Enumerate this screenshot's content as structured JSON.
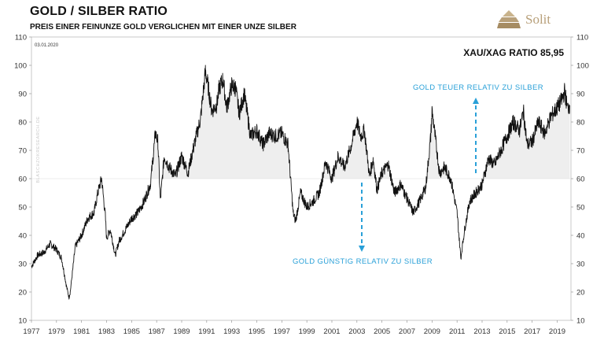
{
  "header": {
    "title": "GOLD / SILBER RATIO",
    "subtitle": "PREIS EINER FEINUNZE GOLD VERGLICHEN MIT EINER UNZE SILBER"
  },
  "logo": {
    "text": "Solit",
    "icon": "pyramid-icon",
    "color": "#b8a07a"
  },
  "watermark": "BLASCHZOKRESEARCH.DE",
  "colors": {
    "line": "#111111",
    "band": "#eeeeee",
    "annotation": "#29a0d8",
    "grid": "#d8d8d8"
  },
  "chart_data": {
    "type": "line",
    "date_label": "03.01.2020",
    "ratio_label": "XAU/XAG RATIO 85,95",
    "xlim": [
      1977,
      2020.1
    ],
    "ylim": [
      10,
      110
    ],
    "x_ticks": [
      "1977",
      "1979",
      "1981",
      "1983",
      "1985",
      "1987",
      "1989",
      "1991",
      "1993",
      "1995",
      "1997",
      "1999",
      "2001",
      "2003",
      "2005",
      "2007",
      "2009",
      "2011",
      "2013",
      "2015",
      "2017",
      "2019"
    ],
    "y_ticks": [
      10,
      20,
      30,
      40,
      50,
      60,
      70,
      80,
      90,
      100,
      110
    ],
    "reference_line": 60,
    "shading": "above 60",
    "grid": false,
    "annotations": [
      {
        "text": "GOLD TEUER RELATIV ZU SILBER",
        "arrow": "up"
      },
      {
        "text": "GOLD GÜNSTIG RELATIV ZU SILBER",
        "arrow": "down"
      }
    ],
    "series": [
      {
        "x": [
          1977.0,
          1977.5,
          1978.0,
          1978.5,
          1979.0,
          1979.4,
          1979.8,
          1980.0,
          1980.1,
          1980.5,
          1981.0,
          1981.5,
          1982.0,
          1982.3,
          1982.6,
          1982.9,
          1983.0,
          1983.3,
          1983.7,
          1984.0,
          1984.5,
          1985.0,
          1985.5,
          1986.0,
          1986.5,
          1986.9,
          1987.1,
          1987.3,
          1987.6,
          1988.0,
          1988.5,
          1989.0,
          1989.5,
          1990.0,
          1990.5,
          1990.9,
          1991.1,
          1991.4,
          1991.8,
          1992.0,
          1992.3,
          1992.6,
          1993.0,
          1993.3,
          1993.6,
          1994.0,
          1994.5,
          1995.0,
          1995.5,
          1996.0,
          1996.5,
          1997.0,
          1997.5,
          1997.9,
          1998.1,
          1998.5,
          1999.0,
          1999.5,
          2000.0,
          2000.5,
          2001.0,
          2001.5,
          2002.0,
          2002.5,
          2003.0,
          2003.3,
          2003.6,
          2004.0,
          2004.3,
          2004.6,
          2005.0,
          2005.5,
          2006.0,
          2006.5,
          2007.0,
          2007.5,
          2008.0,
          2008.5,
          2008.9,
          2009.0,
          2009.3,
          2009.6,
          2010.0,
          2010.5,
          2011.0,
          2011.3,
          2011.6,
          2012.0,
          2012.5,
          2013.0,
          2013.5,
          2014.0,
          2014.5,
          2015.0,
          2015.5,
          2016.0,
          2016.3,
          2016.6,
          2017.0,
          2017.5,
          2018.0,
          2018.5,
          2019.0,
          2019.4,
          2019.6,
          2019.8,
          2020.0
        ],
        "y": [
          29,
          33,
          34,
          37,
          35,
          32,
          22,
          18,
          20,
          36,
          40,
          46,
          48,
          55,
          60,
          47,
          39,
          42,
          33,
          38,
          42,
          46,
          48,
          52,
          58,
          76,
          73,
          52,
          68,
          64,
          61,
          68,
          62,
          72,
          81,
          98,
          93,
          84,
          86,
          92,
          95,
          85,
          93,
          92,
          83,
          90,
          75,
          77,
          72,
          76,
          75,
          76,
          72,
          48,
          45,
          55,
          50,
          52,
          55,
          66,
          60,
          68,
          64,
          71,
          80,
          75,
          77,
          61,
          67,
          56,
          62,
          65,
          55,
          58,
          53,
          48,
          52,
          57,
          75,
          84,
          73,
          62,
          64,
          60,
          48,
          32,
          42,
          52,
          55,
          58,
          67,
          65,
          70,
          75,
          80,
          77,
          84,
          72,
          73,
          80,
          76,
          82,
          85,
          88,
          91,
          85,
          85.95
        ]
      }
    ]
  }
}
